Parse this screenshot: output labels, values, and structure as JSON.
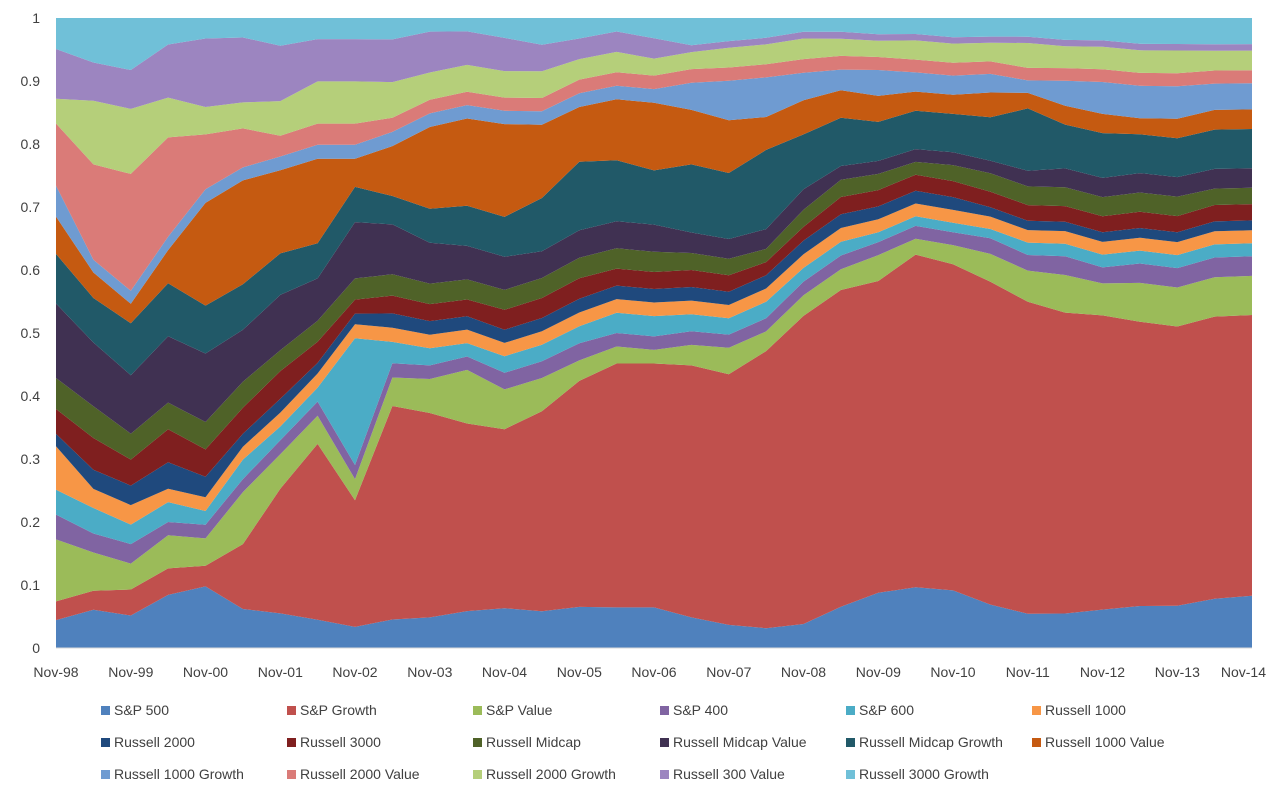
{
  "chart_data": {
    "type": "area",
    "stacked": true,
    "title": "",
    "xlabel": "",
    "ylabel": "",
    "ylim": [
      0,
      1
    ],
    "grid": false,
    "legend_position": "bottom",
    "y_ticks": [
      "0",
      "0.1",
      "0.2",
      "0.3",
      "0.4",
      "0.5",
      "0.6",
      "0.7",
      "0.8",
      "0.9",
      "1"
    ],
    "x_tick_labels": [
      "Nov-98",
      "Nov-99",
      "Nov-00",
      "Nov-01",
      "Nov-02",
      "Nov-03",
      "Nov-04",
      "Nov-05",
      "Nov-06",
      "Nov-07",
      "Nov-08",
      "Nov-09",
      "Nov-10",
      "Nov-11",
      "Nov-12",
      "Nov-13",
      "Nov-14"
    ],
    "x": [
      "Nov-98",
      "May-99",
      "Nov-99",
      "May-00",
      "Nov-00",
      "May-01",
      "Nov-01",
      "May-02",
      "Nov-02",
      "May-03",
      "Nov-03",
      "May-04",
      "Nov-04",
      "May-05",
      "Nov-05",
      "May-06",
      "Nov-06",
      "May-07",
      "Nov-07",
      "May-08",
      "Nov-08",
      "May-09",
      "Nov-09",
      "May-10",
      "Nov-10",
      "May-11",
      "Nov-11",
      "May-12",
      "Nov-12",
      "May-13",
      "Nov-13",
      "May-14",
      "Nov-14"
    ],
    "series": [
      {
        "name": "S&P 500",
        "color": "#4f81bd",
        "values": [
          0.045,
          0.06,
          0.05,
          0.08,
          0.09,
          0.06,
          0.05,
          0.04,
          0.03,
          0.04,
          0.045,
          0.055,
          0.06,
          0.055,
          0.06,
          0.06,
          0.06,
          0.045,
          0.035,
          0.03,
          0.035,
          0.06,
          0.085,
          0.095,
          0.09,
          0.07,
          0.055,
          0.055,
          0.06,
          0.065,
          0.065,
          0.075,
          0.08
        ]
      },
      {
        "name": "S&P Growth",
        "color": "#c0504d",
        "values": [
          0.03,
          0.03,
          0.04,
          0.04,
          0.03,
          0.1,
          0.18,
          0.25,
          0.18,
          0.3,
          0.3,
          0.28,
          0.27,
          0.3,
          0.33,
          0.36,
          0.36,
          0.37,
          0.38,
          0.42,
          0.45,
          0.46,
          0.48,
          0.52,
          0.51,
          0.52,
          0.5,
          0.48,
          0.46,
          0.44,
          0.43,
          0.43,
          0.43
        ]
      },
      {
        "name": "S&P Value",
        "color": "#9bbb59",
        "values": [
          0.1,
          0.06,
          0.04,
          0.05,
          0.04,
          0.08,
          0.05,
          0.04,
          0.03,
          0.04,
          0.05,
          0.08,
          0.06,
          0.05,
          0.03,
          0.025,
          0.02,
          0.03,
          0.04,
          0.03,
          0.03,
          0.03,
          0.04,
          0.025,
          0.03,
          0.045,
          0.05,
          0.06,
          0.05,
          0.06,
          0.06,
          0.06,
          0.06
        ]
      },
      {
        "name": "S&P 400",
        "color": "#8064a2",
        "values": [
          0.04,
          0.03,
          0.03,
          0.02,
          0.02,
          0.02,
          0.02,
          0.02,
          0.02,
          0.02,
          0.02,
          0.02,
          0.025,
          0.025,
          0.025,
          0.02,
          0.02,
          0.02,
          0.02,
          0.02,
          0.02,
          0.02,
          0.02,
          0.02,
          0.02,
          0.025,
          0.025,
          0.03,
          0.025,
          0.03,
          0.03,
          0.03,
          0.03
        ]
      },
      {
        "name": "S&P 600",
        "color": "#4bacc6",
        "values": [
          0.04,
          0.04,
          0.03,
          0.03,
          0.02,
          0.03,
          0.02,
          0.02,
          0.18,
          0.03,
          0.025,
          0.02,
          0.025,
          0.025,
          0.025,
          0.03,
          0.03,
          0.025,
          0.025,
          0.025,
          0.02,
          0.02,
          0.015,
          0.015,
          0.015,
          0.015,
          0.02,
          0.02,
          0.02,
          0.02,
          0.02,
          0.02,
          0.02
        ]
      },
      {
        "name": "Russell 1000",
        "color": "#f79646",
        "values": [
          0.07,
          0.03,
          0.03,
          0.02,
          0.02,
          0.02,
          0.02,
          0.02,
          0.02,
          0.02,
          0.02,
          0.02,
          0.02,
          0.02,
          0.02,
          0.02,
          0.02,
          0.02,
          0.02,
          0.02,
          0.02,
          0.02,
          0.02,
          0.02,
          0.02,
          0.02,
          0.02,
          0.02,
          0.02,
          0.02,
          0.02,
          0.02,
          0.02
        ]
      },
      {
        "name": "Russell 2000",
        "color": "#1f497d",
        "values": [
          0.02,
          0.03,
          0.03,
          0.04,
          0.03,
          0.02,
          0.02,
          0.015,
          0.015,
          0.02,
          0.02,
          0.02,
          0.02,
          0.02,
          0.02,
          0.02,
          0.02,
          0.02,
          0.02,
          0.02,
          0.02,
          0.02,
          0.02,
          0.02,
          0.02,
          0.015,
          0.015,
          0.015,
          0.015,
          0.015,
          0.015,
          0.015,
          0.015
        ]
      },
      {
        "name": "Russell 3000",
        "color": "#7f1f1f",
        "values": [
          0.04,
          0.05,
          0.04,
          0.05,
          0.04,
          0.04,
          0.04,
          0.03,
          0.02,
          0.025,
          0.025,
          0.025,
          0.03,
          0.03,
          0.03,
          0.025,
          0.025,
          0.025,
          0.025,
          0.02,
          0.02,
          0.025,
          0.025,
          0.025,
          0.025,
          0.025,
          0.025,
          0.025,
          0.025,
          0.025,
          0.025,
          0.025,
          0.025
        ]
      },
      {
        "name": "Russell Midcap",
        "color": "#4f6228",
        "values": [
          0.05,
          0.05,
          0.04,
          0.04,
          0.04,
          0.04,
          0.03,
          0.03,
          0.03,
          0.03,
          0.03,
          0.03,
          0.03,
          0.03,
          0.03,
          0.03,
          0.03,
          0.025,
          0.025,
          0.02,
          0.025,
          0.025,
          0.025,
          0.02,
          0.025,
          0.03,
          0.03,
          0.03,
          0.03,
          0.03,
          0.03,
          0.025,
          0.025
        ]
      },
      {
        "name": "Russell Midcap Value",
        "color": "#403152",
        "values": [
          0.12,
          0.1,
          0.09,
          0.1,
          0.1,
          0.08,
          0.08,
          0.06,
          0.08,
          0.07,
          0.06,
          0.05,
          0.05,
          0.04,
          0.04,
          0.04,
          0.04,
          0.03,
          0.03,
          0.03,
          0.03,
          0.02,
          0.02,
          0.02,
          0.02,
          0.02,
          0.025,
          0.03,
          0.03,
          0.03,
          0.03,
          0.03,
          0.03
        ]
      },
      {
        "name": "Russell Midcap Growth",
        "color": "#215968",
        "values": [
          0.08,
          0.07,
          0.08,
          0.08,
          0.07,
          0.07,
          0.06,
          0.05,
          0.05,
          0.04,
          0.05,
          0.06,
          0.06,
          0.08,
          0.1,
          0.09,
          0.08,
          0.1,
          0.1,
          0.12,
          0.08,
          0.07,
          0.06,
          0.06,
          0.06,
          0.07,
          0.1,
          0.07,
          0.07,
          0.06,
          0.06,
          0.06,
          0.06
        ]
      },
      {
        "name": "Russell 1000 Value",
        "color": "#c55a11",
        "values": [
          0.06,
          0.04,
          0.03,
          0.05,
          0.15,
          0.16,
          0.12,
          0.12,
          0.04,
          0.07,
          0.12,
          0.13,
          0.14,
          0.11,
          0.08,
          0.09,
          0.1,
          0.08,
          0.08,
          0.05,
          0.05,
          0.04,
          0.04,
          0.03,
          0.03,
          0.04,
          0.025,
          0.03,
          0.03,
          0.025,
          0.03,
          0.03,
          0.03
        ]
      },
      {
        "name": "Russell 1000 Growth",
        "color": "#6f9bd1",
        "values": [
          0.05,
          0.02,
          0.02,
          0.02,
          0.02,
          0.02,
          0.02,
          0.02,
          0.02,
          0.02,
          0.02,
          0.02,
          0.02,
          0.02,
          0.02,
          0.02,
          0.02,
          0.04,
          0.06,
          0.06,
          0.04,
          0.03,
          0.04,
          0.03,
          0.03,
          0.03,
          0.02,
          0.04,
          0.05,
          0.05,
          0.05,
          0.04,
          0.04
        ]
      },
      {
        "name": "Russell 2000 Value",
        "color": "#da7b78",
        "values": [
          0.1,
          0.15,
          0.18,
          0.15,
          0.08,
          0.06,
          0.03,
          0.03,
          0.03,
          0.02,
          0.02,
          0.02,
          0.02,
          0.02,
          0.02,
          0.02,
          0.02,
          0.02,
          0.02,
          0.02,
          0.02,
          0.02,
          0.02,
          0.02,
          0.02,
          0.02,
          0.02,
          0.02,
          0.02,
          0.02,
          0.02,
          0.02,
          0.02
        ]
      },
      {
        "name": "Russell 2000 Growth",
        "color": "#b5cf7a",
        "values": [
          0.04,
          0.1,
          0.1,
          0.06,
          0.04,
          0.04,
          0.05,
          0.06,
          0.06,
          0.05,
          0.04,
          0.04,
          0.04,
          0.04,
          0.03,
          0.03,
          0.025,
          0.025,
          0.03,
          0.03,
          0.03,
          0.025,
          0.025,
          0.03,
          0.03,
          0.03,
          0.04,
          0.035,
          0.035,
          0.035,
          0.035,
          0.03,
          0.03
        ]
      },
      {
        "name": "Russell 300 Value",
        "color": "#9c85c0",
        "values": [
          0.08,
          0.06,
          0.06,
          0.08,
          0.1,
          0.1,
          0.08,
          0.06,
          0.06,
          0.06,
          0.06,
          0.05,
          0.05,
          0.04,
          0.03,
          0.03,
          0.03,
          0.01,
          0.01,
          0.01,
          0.01,
          0.01,
          0.01,
          0.01,
          0.01,
          0.01,
          0.01,
          0.01,
          0.01,
          0.01,
          0.01,
          0.01,
          0.01
        ]
      },
      {
        "name": "Russell 3000 Growth",
        "color": "#70c0d8",
        "values": [
          0.05,
          0.07,
          0.08,
          0.04,
          0.03,
          0.03,
          0.04,
          0.03,
          0.03,
          0.03,
          0.02,
          0.02,
          0.03,
          0.04,
          0.03,
          0.02,
          0.03,
          0.04,
          0.035,
          0.03,
          0.02,
          0.02,
          0.025,
          0.025,
          0.03,
          0.03,
          0.03,
          0.035,
          0.035,
          0.04,
          0.04,
          0.04,
          0.04
        ]
      }
    ]
  }
}
